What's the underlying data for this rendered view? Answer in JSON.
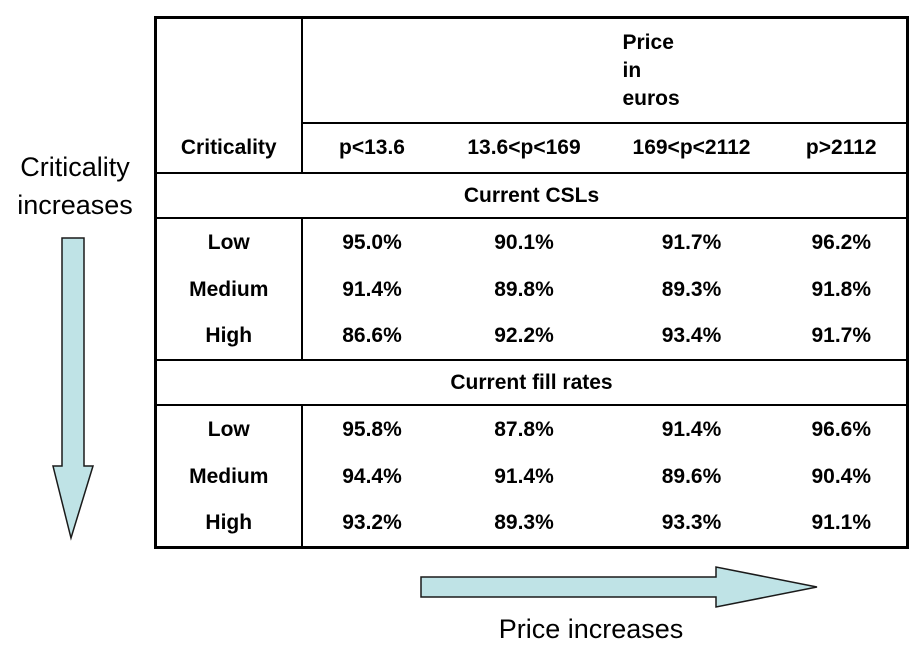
{
  "labels": {
    "vertical_axis": "Criticality increases",
    "horizontal_axis": "Price increases"
  },
  "table": {
    "corner_label": "Criticality",
    "price_header": "Price in euros",
    "columns": [
      "p<13.6",
      "13.6<p<169",
      "169<p<2112",
      "p>2112"
    ],
    "sections": [
      {
        "title": "Current CSLs",
        "rows": [
          {
            "criticality": "Low",
            "values": [
              "95.0%",
              "90.1%",
              "91.7%",
              "96.2%"
            ]
          },
          {
            "criticality": "Medium",
            "values": [
              "91.4%",
              "89.8%",
              "89.3%",
              "91.8%"
            ]
          },
          {
            "criticality": "High",
            "values": [
              "86.6%",
              "92.2%",
              "93.4%",
              "91.7%"
            ]
          }
        ]
      },
      {
        "title": "Current fill rates",
        "rows": [
          {
            "criticality": "Low",
            "values": [
              "95.8%",
              "87.8%",
              "91.4%",
              "96.6%"
            ]
          },
          {
            "criticality": "Medium",
            "values": [
              "94.4%",
              "91.4%",
              "89.6%",
              "90.4%"
            ]
          },
          {
            "criticality": "High",
            "values": [
              "93.2%",
              "89.3%",
              "93.3%",
              "91.1%"
            ]
          }
        ]
      }
    ]
  },
  "colors": {
    "arrow_fill": "#bfe3e6",
    "border": "#000000"
  }
}
